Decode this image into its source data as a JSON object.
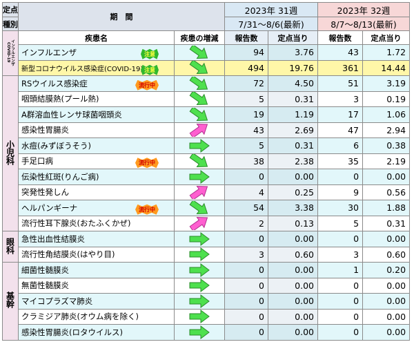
{
  "header": {
    "type_top": "定点",
    "type_bottom": "種別",
    "period": "期　間",
    "weeks": [
      {
        "label": "2023年 31週",
        "range": "7/31～8/6(最新)"
      },
      {
        "label": "2023年 32週",
        "range": "8/7～8/13(最新)"
      }
    ],
    "disease": "疾患名",
    "trend": "疾患の増減",
    "count": "報告数",
    "per": "定点当り"
  },
  "groups": [
    {
      "name": [
        "インフルエンザ",
        "COVID-19"
      ],
      "rows": [
        {
          "name": "インフルエンザ",
          "badge": "注意",
          "trend": "down",
          "w31": [
            "94",
            "3.76"
          ],
          "w32": [
            "43",
            "1.72"
          ]
        },
        {
          "name": "新型コロナウイルス感染症(COVID-19)",
          "badge": "注意",
          "trend": "down",
          "highlight": true,
          "w31": [
            "494",
            "19.76"
          ],
          "w32": [
            "361",
            "14.44"
          ]
        }
      ]
    },
    {
      "name": [
        "小児科"
      ],
      "rows": [
        {
          "name": "RSウイルス感染症",
          "badge": "流行中",
          "trend": "down",
          "w31": [
            "72",
            "4.50"
          ],
          "w32": [
            "51",
            "3.19"
          ]
        },
        {
          "name": "咽頭結膜熱(プール熱)",
          "trend": "down",
          "w31": [
            "5",
            "0.31"
          ],
          "w32": [
            "3",
            "0.19"
          ]
        },
        {
          "name": "A群溶血性レンサ球菌咽頭炎",
          "trend": "down",
          "w31": [
            "19",
            "1.19"
          ],
          "w32": [
            "17",
            "1.06"
          ]
        },
        {
          "name": "感染性胃腸炎",
          "trend": "up",
          "w31": [
            "43",
            "2.69"
          ],
          "w32": [
            "47",
            "2.94"
          ]
        },
        {
          "name": "水痘(みずぼうそう)",
          "trend": "flat",
          "w31": [
            "5",
            "0.31"
          ],
          "w32": [
            "6",
            "0.38"
          ]
        },
        {
          "name": "手足口病",
          "badge": "流行中",
          "trend": "down",
          "w31": [
            "38",
            "2.38"
          ],
          "w32": [
            "35",
            "2.19"
          ]
        },
        {
          "name": "伝染性紅斑(りんご病)",
          "trend": "flat",
          "w31": [
            "0",
            "0.00"
          ],
          "w32": [
            "0",
            "0.00"
          ]
        },
        {
          "name": "突発性発しん",
          "trend": "up",
          "w31": [
            "4",
            "0.25"
          ],
          "w32": [
            "9",
            "0.56"
          ]
        },
        {
          "name": "ヘルパンギーナ",
          "badge": "流行中",
          "trend": "down",
          "w31": [
            "54",
            "3.38"
          ],
          "w32": [
            "30",
            "1.88"
          ]
        },
        {
          "name": "流行性耳下腺炎(おたふくかぜ)",
          "trend": "up",
          "w31": [
            "2",
            "0.13"
          ],
          "w32": [
            "5",
            "0.31"
          ]
        }
      ]
    },
    {
      "name": [
        "眼科"
      ],
      "rows": [
        {
          "name": "急性出血性結膜炎",
          "trend": "flat",
          "w31": [
            "0",
            "0.00"
          ],
          "w32": [
            "0",
            "0.00"
          ]
        },
        {
          "name": "流行性角結膜炎(はやり目)",
          "trend": "flat",
          "w31": [
            "3",
            "0.60"
          ],
          "w32": [
            "3",
            "0.60"
          ]
        }
      ]
    },
    {
      "name": [
        "基幹"
      ],
      "rows": [
        {
          "name": "細菌性髄膜炎",
          "trend": "flat",
          "w31": [
            "0",
            "0.00"
          ],
          "w32": [
            "1",
            "0.20"
          ]
        },
        {
          "name": "無菌性髄膜炎",
          "trend": "flat",
          "w31": [
            "0",
            "0.00"
          ],
          "w32": [
            "0",
            "0.00"
          ]
        },
        {
          "name": "マイコプラズマ肺炎",
          "trend": "flat",
          "w31": [
            "0",
            "0.00"
          ],
          "w32": [
            "0",
            "0.00"
          ]
        },
        {
          "name": "クラミジア肺炎(オウム病を除く)",
          "trend": "flat",
          "w31": [
            "0",
            "0.00"
          ],
          "w32": [
            "0",
            "0.00"
          ]
        },
        {
          "name": "感染性胃腸炎(ロタウイルス)",
          "trend": "flat",
          "w31": [
            "0",
            "0.00"
          ],
          "w32": [
            "0",
            "0.00"
          ]
        }
      ]
    }
  ]
}
